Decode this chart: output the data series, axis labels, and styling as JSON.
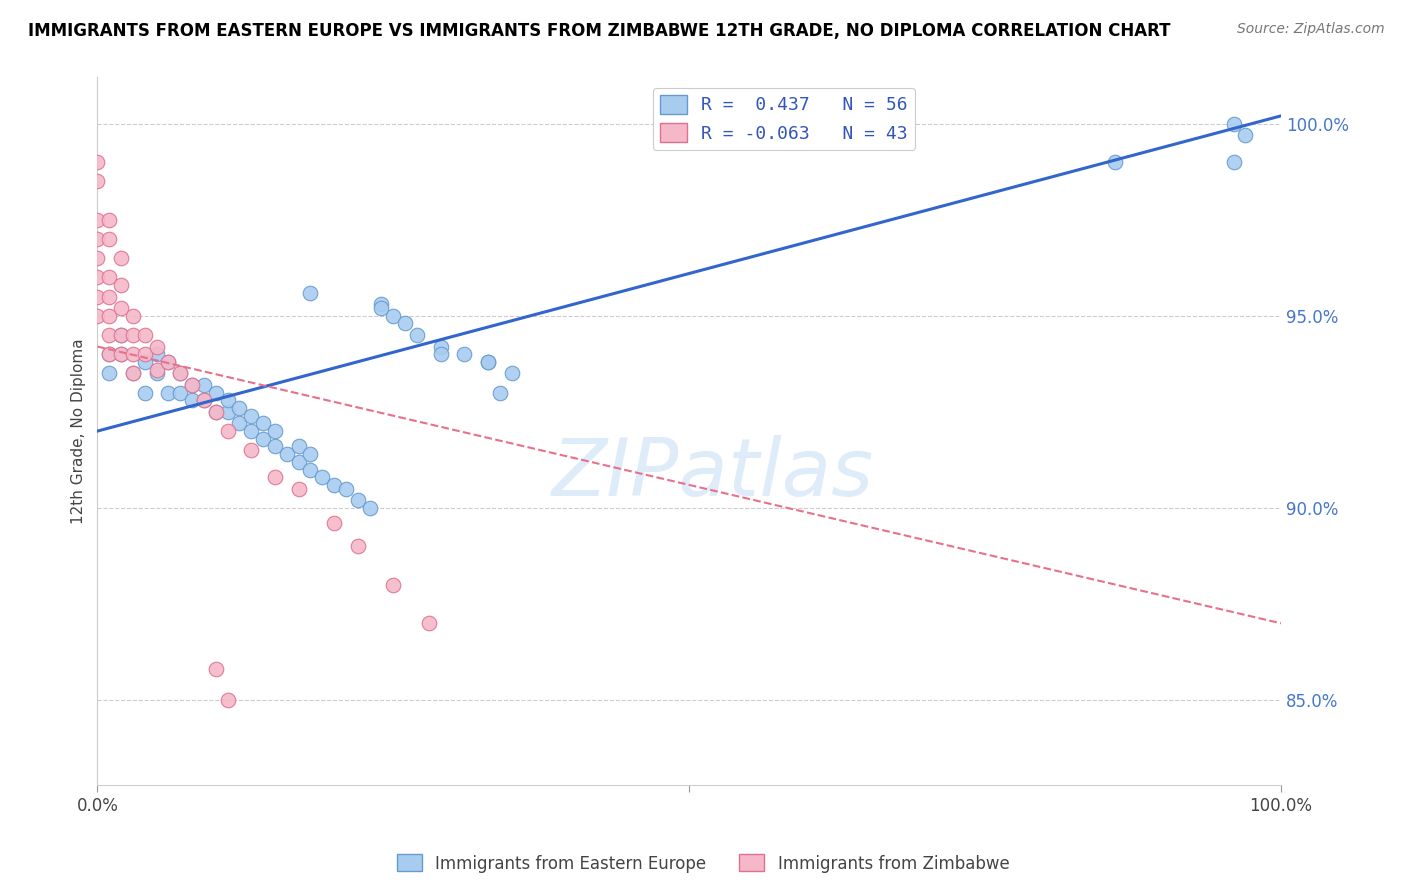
{
  "title": "IMMIGRANTS FROM EASTERN EUROPE VS IMMIGRANTS FROM ZIMBABWE 12TH GRADE, NO DIPLOMA CORRELATION CHART",
  "source": "Source: ZipAtlas.com",
  "ylabel": "12th Grade, No Diploma",
  "ytick_labels": [
    "85.0%",
    "90.0%",
    "95.0%",
    "100.0%"
  ],
  "ytick_values": [
    0.85,
    0.9,
    0.95,
    1.0
  ],
  "xlim": [
    0.0,
    1.0
  ],
  "ylim": [
    0.828,
    1.012
  ],
  "r_blue": 0.437,
  "n_blue": 56,
  "r_pink": -0.063,
  "n_pink": 43,
  "blue_color": "#A8CCF0",
  "pink_color": "#F5B8C8",
  "blue_edge_color": "#6699CC",
  "pink_edge_color": "#E07090",
  "blue_line_color": "#3366CC",
  "pink_line_color": "#E8708A",
  "grid_color": "#CCCCCC",
  "watermark": "ZIPatlas",
  "blue_scatter_x": [
    0.01,
    0.01,
    0.02,
    0.02,
    0.03,
    0.04,
    0.04,
    0.05,
    0.05,
    0.06,
    0.06,
    0.07,
    0.07,
    0.08,
    0.08,
    0.09,
    0.09,
    0.1,
    0.1,
    0.11,
    0.11,
    0.12,
    0.12,
    0.13,
    0.13,
    0.14,
    0.14,
    0.15,
    0.15,
    0.16,
    0.17,
    0.17,
    0.18,
    0.18,
    0.19,
    0.2,
    0.21,
    0.22,
    0.23,
    0.24,
    0.25,
    0.26,
    0.27,
    0.29,
    0.31,
    0.33,
    0.35,
    0.18,
    0.24,
    0.29,
    0.33,
    0.34,
    0.86,
    0.96,
    0.96,
    0.97
  ],
  "blue_scatter_y": [
    0.935,
    0.94,
    0.94,
    0.945,
    0.935,
    0.93,
    0.938,
    0.935,
    0.94,
    0.93,
    0.938,
    0.93,
    0.935,
    0.928,
    0.932,
    0.928,
    0.932,
    0.925,
    0.93,
    0.925,
    0.928,
    0.922,
    0.926,
    0.92,
    0.924,
    0.918,
    0.922,
    0.916,
    0.92,
    0.914,
    0.916,
    0.912,
    0.91,
    0.914,
    0.908,
    0.906,
    0.905,
    0.902,
    0.9,
    0.953,
    0.95,
    0.948,
    0.945,
    0.942,
    0.94,
    0.938,
    0.935,
    0.956,
    0.952,
    0.94,
    0.938,
    0.93,
    0.99,
    0.99,
    1.0,
    0.997
  ],
  "pink_scatter_x": [
    0.0,
    0.0,
    0.0,
    0.0,
    0.0,
    0.0,
    0.0,
    0.0,
    0.01,
    0.01,
    0.01,
    0.01,
    0.01,
    0.01,
    0.01,
    0.02,
    0.02,
    0.02,
    0.02,
    0.02,
    0.03,
    0.03,
    0.03,
    0.03,
    0.04,
    0.04,
    0.05,
    0.05,
    0.06,
    0.07,
    0.08,
    0.09,
    0.1,
    0.11,
    0.13,
    0.15,
    0.17,
    0.2,
    0.22,
    0.25,
    0.28,
    0.1,
    0.11
  ],
  "pink_scatter_y": [
    0.99,
    0.985,
    0.975,
    0.97,
    0.965,
    0.96,
    0.955,
    0.95,
    0.975,
    0.97,
    0.96,
    0.955,
    0.95,
    0.945,
    0.94,
    0.965,
    0.958,
    0.952,
    0.945,
    0.94,
    0.95,
    0.945,
    0.94,
    0.935,
    0.945,
    0.94,
    0.942,
    0.936,
    0.938,
    0.935,
    0.932,
    0.928,
    0.925,
    0.92,
    0.915,
    0.908,
    0.905,
    0.896,
    0.89,
    0.88,
    0.87,
    0.858,
    0.85
  ],
  "blue_line_x": [
    0.0,
    1.0
  ],
  "blue_line_y": [
    0.92,
    1.002
  ],
  "pink_line_x": [
    0.0,
    1.0
  ],
  "pink_line_y": [
    0.942,
    0.87
  ]
}
